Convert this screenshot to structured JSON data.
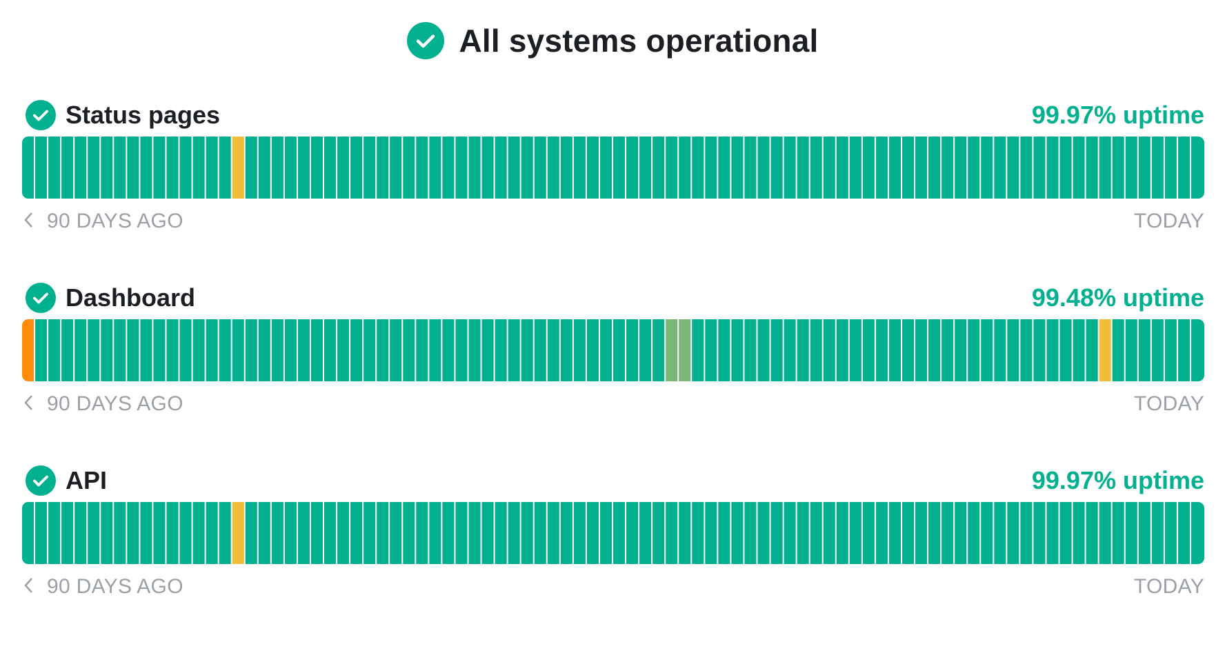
{
  "colors": {
    "operational": "#00b08e",
    "minor": "#f0bc3c",
    "major": "#ff8c0a",
    "partial": "#7ab676",
    "muted_text": "#9aa0a6",
    "dark_text": "#1b1f23"
  },
  "header": {
    "icon": "check-circle-icon",
    "title": "All systems operational"
  },
  "components": [
    {
      "name": "Status pages",
      "uptime": "99.97% uptime",
      "days": 90,
      "incidents": [
        {
          "day": 16,
          "status": "minor"
        }
      ],
      "axis_left": "90 DAYS AGO",
      "axis_right": "TODAY"
    },
    {
      "name": "Dashboard",
      "uptime": "99.48% uptime",
      "days": 90,
      "incidents": [
        {
          "day": 0,
          "status": "major"
        },
        {
          "day": 49,
          "status": "partial"
        },
        {
          "day": 50,
          "status": "partial"
        },
        {
          "day": 82,
          "status": "minor"
        }
      ],
      "axis_left": "90 DAYS AGO",
      "axis_right": "TODAY"
    },
    {
      "name": "API",
      "uptime": "99.97% uptime",
      "days": 90,
      "incidents": [
        {
          "day": 16,
          "status": "minor"
        }
      ],
      "axis_left": "90 DAYS AGO",
      "axis_right": "TODAY"
    }
  ]
}
